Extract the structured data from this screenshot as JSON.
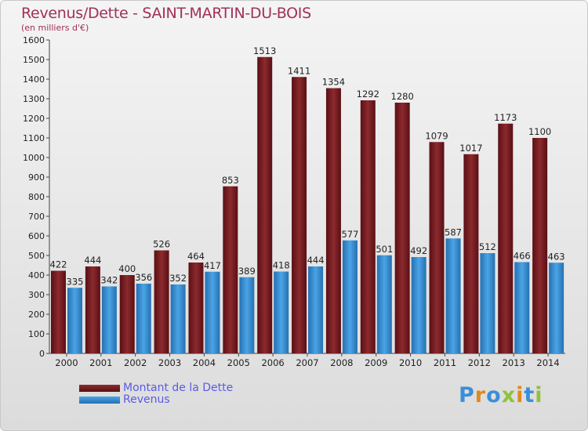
{
  "header": {
    "title": "Revenus/Dette - SAINT-MARTIN-DU-BOIS",
    "subtitle": "(en milliers d'€)"
  },
  "legend": {
    "debt_label": "Montant de la Dette",
    "revenue_label": "Revenus"
  },
  "logo": {
    "text": "Proxiti"
  },
  "colors": {
    "debt_bar": "#8b2a2e",
    "debt_bar_dark": "#5a0f14",
    "revenue_bar": "#4aa4e6",
    "revenue_bar_dark": "#2670b0",
    "axis_text": "#222222",
    "title": "#a0305a",
    "legend_text": "#5a5ae6"
  },
  "chart_data": {
    "type": "bar",
    "title": "Revenus/Dette - SAINT-MARTIN-DU-BOIS",
    "subtitle": "(en milliers d'€)",
    "categories": [
      "2000",
      "2001",
      "2002",
      "2003",
      "2004",
      "2005",
      "2006",
      "2007",
      "2008",
      "2009",
      "2010",
      "2011",
      "2012",
      "2013",
      "2014"
    ],
    "series": [
      {
        "name": "Montant de la Dette",
        "values": [
          422,
          444,
          400,
          526,
          464,
          853,
          1513,
          1411,
          1354,
          1292,
          1280,
          1079,
          1017,
          1173,
          1100
        ]
      },
      {
        "name": "Revenus",
        "values": [
          335,
          342,
          356,
          352,
          417,
          389,
          418,
          444,
          577,
          501,
          492,
          587,
          512,
          466,
          463
        ]
      }
    ],
    "ylim": [
      0,
      1600
    ],
    "yticks": [
      0,
      100,
      200,
      300,
      400,
      500,
      600,
      700,
      800,
      900,
      1000,
      1100,
      1200,
      1300,
      1400,
      1500,
      1600
    ],
    "grid": false,
    "legend_position": "bottom-left"
  }
}
